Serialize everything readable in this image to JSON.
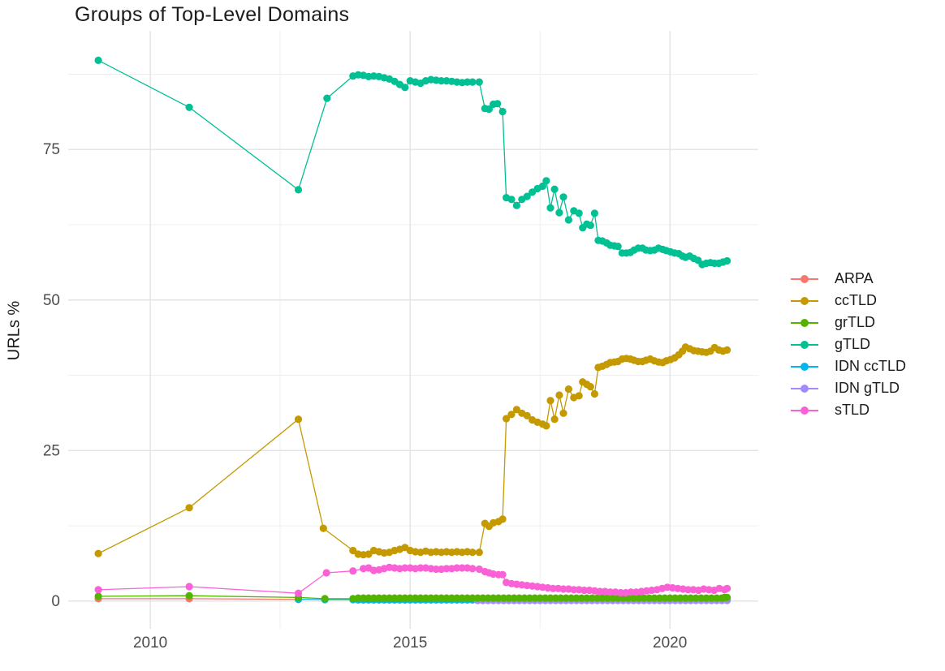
{
  "title": "Groups of Top-Level Domains",
  "chart_data": {
    "type": "line",
    "title": "Groups of Top-Level Domains",
    "xlabel": "",
    "ylabel": "URLs %",
    "x_ticks": [
      2010,
      2015,
      2020
    ],
    "x_minor_ticks": [
      2012.5,
      2017.5
    ],
    "y_ticks": [
      0,
      25,
      50,
      75
    ],
    "y_minor_ticks": [
      12.5,
      37.5,
      62.5,
      87.5
    ],
    "xlim": [
      2008.42,
      2021.7
    ],
    "ylim": [
      -4.6,
      94.7
    ],
    "grid": true,
    "legend_position": "right",
    "series": [
      {
        "name": "ARPA",
        "color": "#F8766D",
        "z": 1,
        "points": [
          [
            2009.0,
            0.4
          ],
          [
            2010.75,
            0.4
          ],
          [
            2012.85,
            0.3
          ]
        ]
      },
      {
        "name": "ccTLD",
        "color": "#C49A00",
        "z": 4,
        "points": [
          [
            2009.0,
            7.9
          ],
          [
            2010.75,
            15.5
          ],
          [
            2012.85,
            30.2
          ],
          [
            2013.33,
            12.1
          ],
          [
            2013.9,
            8.4
          ],
          [
            2014.0,
            7.8
          ],
          [
            2014.1,
            7.7
          ],
          [
            2014.2,
            7.8
          ],
          [
            2014.3,
            8.4
          ],
          [
            2014.4,
            8.2
          ],
          [
            2014.5,
            8.0
          ],
          [
            2014.6,
            8.1
          ],
          [
            2014.7,
            8.4
          ],
          [
            2014.8,
            8.6
          ],
          [
            2014.9,
            8.9
          ],
          [
            2015.0,
            8.4
          ],
          [
            2015.1,
            8.2
          ],
          [
            2015.2,
            8.1
          ],
          [
            2015.3,
            8.3
          ],
          [
            2015.4,
            8.1
          ],
          [
            2015.5,
            8.2
          ],
          [
            2015.6,
            8.1
          ],
          [
            2015.7,
            8.2
          ],
          [
            2015.8,
            8.1
          ],
          [
            2015.9,
            8.2
          ],
          [
            2016.0,
            8.1
          ],
          [
            2016.1,
            8.2
          ],
          [
            2016.2,
            8.1
          ],
          [
            2016.33,
            8.1
          ],
          [
            2016.44,
            12.9
          ],
          [
            2016.52,
            12.4
          ],
          [
            2016.6,
            13.0
          ],
          [
            2016.7,
            13.2
          ],
          [
            2016.78,
            13.6
          ],
          [
            2016.85,
            30.3
          ],
          [
            2016.95,
            31.0
          ],
          [
            2017.05,
            31.8
          ],
          [
            2017.15,
            31.2
          ],
          [
            2017.25,
            30.8
          ],
          [
            2017.35,
            30.1
          ],
          [
            2017.45,
            29.7
          ],
          [
            2017.55,
            29.4
          ],
          [
            2017.62,
            29.1
          ],
          [
            2017.7,
            33.3
          ],
          [
            2017.78,
            30.2
          ],
          [
            2017.87,
            34.2
          ],
          [
            2017.95,
            31.2
          ],
          [
            2018.05,
            35.2
          ],
          [
            2018.15,
            33.8
          ],
          [
            2018.25,
            34.1
          ],
          [
            2018.32,
            36.4
          ],
          [
            2018.4,
            36.0
          ],
          [
            2018.47,
            35.6
          ],
          [
            2018.55,
            34.4
          ],
          [
            2018.62,
            38.8
          ],
          [
            2018.7,
            39.0
          ],
          [
            2018.78,
            39.3
          ],
          [
            2018.85,
            39.6
          ],
          [
            2018.93,
            39.7
          ],
          [
            2019.0,
            39.8
          ],
          [
            2019.08,
            40.2
          ],
          [
            2019.16,
            40.3
          ],
          [
            2019.24,
            40.2
          ],
          [
            2019.31,
            40.0
          ],
          [
            2019.39,
            39.8
          ],
          [
            2019.47,
            39.8
          ],
          [
            2019.54,
            40.0
          ],
          [
            2019.62,
            40.2
          ],
          [
            2019.7,
            39.9
          ],
          [
            2019.78,
            39.7
          ],
          [
            2019.86,
            39.6
          ],
          [
            2019.93,
            39.9
          ],
          [
            2020.01,
            40.1
          ],
          [
            2020.09,
            40.4
          ],
          [
            2020.17,
            40.9
          ],
          [
            2020.24,
            41.5
          ],
          [
            2020.3,
            42.2
          ],
          [
            2020.38,
            41.9
          ],
          [
            2020.46,
            41.6
          ],
          [
            2020.54,
            41.5
          ],
          [
            2020.62,
            41.4
          ],
          [
            2020.7,
            41.3
          ],
          [
            2020.78,
            41.5
          ],
          [
            2020.86,
            42.1
          ],
          [
            2020.94,
            41.7
          ],
          [
            2021.02,
            41.5
          ],
          [
            2021.1,
            41.7
          ]
        ]
      },
      {
        "name": "grTLD",
        "color": "#53B400",
        "z": 5,
        "points": [
          [
            2009.0,
            0.8
          ],
          [
            2010.75,
            0.9
          ],
          [
            2012.85,
            0.6
          ],
          [
            2013.36,
            0.4
          ],
          [
            2013.9,
            0.4
          ],
          [
            2021.05,
            0.6
          ],
          [
            2021.1,
            0.6
          ]
        ],
        "runs": [
          [
            2014.0,
            2021.0,
            0.1,
            0.5
          ]
        ]
      },
      {
        "name": "gTLD",
        "color": "#00C094",
        "z": 6,
        "points": [
          [
            2009.0,
            89.8
          ],
          [
            2010.75,
            82.0
          ],
          [
            2012.85,
            68.3
          ],
          [
            2013.4,
            83.5
          ],
          [
            2013.9,
            87.2
          ],
          [
            2014.0,
            87.4
          ],
          [
            2014.1,
            87.3
          ],
          [
            2014.2,
            87.1
          ],
          [
            2014.3,
            87.2
          ],
          [
            2014.4,
            87.1
          ],
          [
            2014.5,
            86.9
          ],
          [
            2014.6,
            86.7
          ],
          [
            2014.7,
            86.3
          ],
          [
            2014.8,
            85.8
          ],
          [
            2014.9,
            85.3
          ],
          [
            2015.0,
            86.4
          ],
          [
            2015.1,
            86.2
          ],
          [
            2015.2,
            86.0
          ],
          [
            2015.3,
            86.4
          ],
          [
            2015.4,
            86.6
          ],
          [
            2015.5,
            86.5
          ],
          [
            2015.6,
            86.4
          ],
          [
            2015.7,
            86.4
          ],
          [
            2015.8,
            86.3
          ],
          [
            2015.9,
            86.2
          ],
          [
            2016.0,
            86.1
          ],
          [
            2016.1,
            86.2
          ],
          [
            2016.2,
            86.2
          ],
          [
            2016.33,
            86.2
          ],
          [
            2016.44,
            81.8
          ],
          [
            2016.52,
            81.7
          ],
          [
            2016.6,
            82.5
          ],
          [
            2016.68,
            82.6
          ],
          [
            2016.78,
            81.3
          ],
          [
            2016.85,
            67.0
          ],
          [
            2016.95,
            66.7
          ],
          [
            2017.05,
            65.7
          ],
          [
            2017.15,
            66.7
          ],
          [
            2017.25,
            67.2
          ],
          [
            2017.35,
            67.9
          ],
          [
            2017.45,
            68.5
          ],
          [
            2017.55,
            68.9
          ],
          [
            2017.62,
            69.8
          ],
          [
            2017.7,
            65.3
          ],
          [
            2017.78,
            68.4
          ],
          [
            2017.87,
            64.5
          ],
          [
            2017.95,
            67.1
          ],
          [
            2018.05,
            63.3
          ],
          [
            2018.15,
            64.8
          ],
          [
            2018.25,
            64.4
          ],
          [
            2018.32,
            62.0
          ],
          [
            2018.4,
            62.6
          ],
          [
            2018.47,
            62.4
          ],
          [
            2018.55,
            64.4
          ],
          [
            2018.62,
            59.9
          ],
          [
            2018.7,
            59.8
          ],
          [
            2018.78,
            59.5
          ],
          [
            2018.85,
            59.1
          ],
          [
            2018.93,
            59.0
          ],
          [
            2019.0,
            58.9
          ],
          [
            2019.08,
            57.8
          ],
          [
            2019.16,
            57.8
          ],
          [
            2019.24,
            57.9
          ],
          [
            2019.31,
            58.3
          ],
          [
            2019.39,
            58.6
          ],
          [
            2019.47,
            58.6
          ],
          [
            2019.54,
            58.3
          ],
          [
            2019.62,
            58.2
          ],
          [
            2019.7,
            58.3
          ],
          [
            2019.78,
            58.6
          ],
          [
            2019.86,
            58.4
          ],
          [
            2019.93,
            58.2
          ],
          [
            2020.01,
            58.0
          ],
          [
            2020.09,
            57.8
          ],
          [
            2020.17,
            57.7
          ],
          [
            2020.24,
            57.3
          ],
          [
            2020.3,
            57.1
          ],
          [
            2020.38,
            57.3
          ],
          [
            2020.46,
            56.9
          ],
          [
            2020.54,
            56.6
          ],
          [
            2020.62,
            55.9
          ],
          [
            2020.7,
            56.1
          ],
          [
            2020.78,
            56.2
          ],
          [
            2020.86,
            56.1
          ],
          [
            2020.94,
            56.1
          ],
          [
            2021.02,
            56.3
          ],
          [
            2021.1,
            56.5
          ]
        ]
      },
      {
        "name": "IDN ccTLD",
        "color": "#00B6EB",
        "z": 2,
        "points": [
          [
            2012.85,
            0.3
          ],
          [
            2013.36,
            0.25
          ],
          [
            2013.9,
            0.25
          ]
        ],
        "runs": [
          [
            2014.0,
            2021.1,
            0.1,
            0.2
          ]
        ]
      },
      {
        "name": "IDN gTLD",
        "color": "#A58AFF",
        "z": 3,
        "points": [],
        "runs": [
          [
            2016.3,
            2021.1,
            0.1,
            0.12
          ]
        ]
      },
      {
        "name": "sTLD",
        "color": "#FB61D7",
        "z": 7,
        "points": [
          [
            2009.0,
            1.9
          ],
          [
            2010.75,
            2.4
          ],
          [
            2012.85,
            1.3
          ],
          [
            2013.39,
            4.7
          ],
          [
            2013.9,
            5.0
          ],
          [
            2014.1,
            5.4
          ],
          [
            2014.2,
            5.5
          ],
          [
            2014.3,
            5.1
          ],
          [
            2014.4,
            5.2
          ],
          [
            2014.5,
            5.4
          ],
          [
            2014.6,
            5.6
          ],
          [
            2014.7,
            5.5
          ],
          [
            2014.8,
            5.4
          ],
          [
            2014.9,
            5.5
          ],
          [
            2015.0,
            5.5
          ],
          [
            2015.1,
            5.4
          ],
          [
            2015.2,
            5.5
          ],
          [
            2015.3,
            5.5
          ],
          [
            2015.4,
            5.4
          ],
          [
            2015.5,
            5.3
          ],
          [
            2015.6,
            5.3
          ],
          [
            2015.7,
            5.4
          ],
          [
            2015.8,
            5.4
          ],
          [
            2015.9,
            5.5
          ],
          [
            2016.0,
            5.5
          ],
          [
            2016.1,
            5.5
          ],
          [
            2016.2,
            5.4
          ],
          [
            2016.33,
            5.3
          ],
          [
            2016.44,
            4.9
          ],
          [
            2016.52,
            4.7
          ],
          [
            2016.6,
            4.5
          ],
          [
            2016.7,
            4.4
          ],
          [
            2016.78,
            4.4
          ],
          [
            2016.85,
            3.1
          ],
          [
            2016.95,
            2.9
          ],
          [
            2017.05,
            2.8
          ],
          [
            2017.15,
            2.7
          ],
          [
            2017.25,
            2.6
          ],
          [
            2017.35,
            2.5
          ],
          [
            2017.45,
            2.4
          ],
          [
            2017.55,
            2.3
          ],
          [
            2017.65,
            2.2
          ],
          [
            2017.75,
            2.1
          ],
          [
            2017.85,
            2.1
          ],
          [
            2017.95,
            2.0
          ],
          [
            2018.05,
            2.0
          ],
          [
            2018.15,
            1.9
          ],
          [
            2018.25,
            1.9
          ],
          [
            2018.35,
            1.8
          ],
          [
            2018.45,
            1.8
          ],
          [
            2018.55,
            1.7
          ],
          [
            2018.65,
            1.6
          ],
          [
            2018.75,
            1.6
          ],
          [
            2018.85,
            1.5
          ],
          [
            2018.95,
            1.5
          ],
          [
            2019.05,
            1.4
          ],
          [
            2019.15,
            1.4
          ],
          [
            2019.25,
            1.5
          ],
          [
            2019.35,
            1.5
          ],
          [
            2019.45,
            1.6
          ],
          [
            2019.55,
            1.7
          ],
          [
            2019.65,
            1.8
          ],
          [
            2019.75,
            1.9
          ],
          [
            2019.85,
            2.1
          ],
          [
            2019.95,
            2.3
          ],
          [
            2020.05,
            2.2
          ],
          [
            2020.15,
            2.1
          ],
          [
            2020.25,
            2.0
          ],
          [
            2020.35,
            1.9
          ],
          [
            2020.45,
            1.9
          ],
          [
            2020.55,
            1.8
          ],
          [
            2020.65,
            2.0
          ],
          [
            2020.75,
            1.9
          ],
          [
            2020.85,
            1.8
          ],
          [
            2020.95,
            2.1
          ],
          [
            2021.05,
            1.9
          ],
          [
            2021.1,
            2.1
          ]
        ]
      }
    ]
  },
  "colors": {
    "background": "#ffffff",
    "grid_major": "#e3e3e3",
    "grid_minor": "#efefef",
    "tick_label": "#4d4d4d",
    "text": "#1c1c1c"
  }
}
